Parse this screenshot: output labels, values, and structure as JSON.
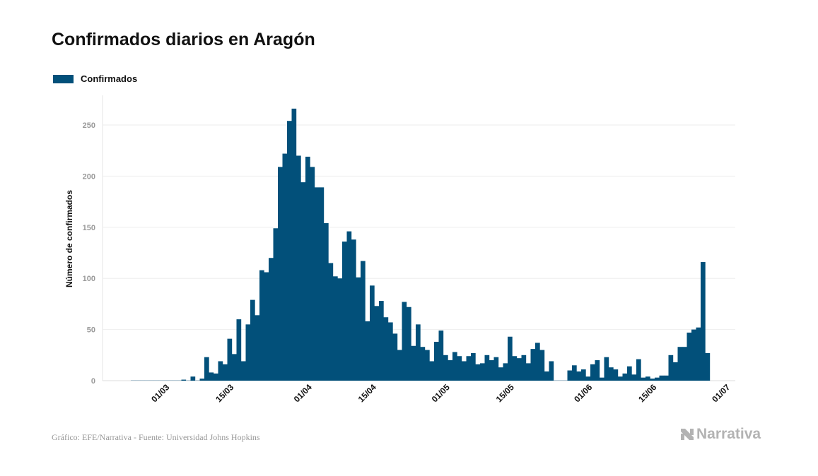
{
  "chart_data": {
    "type": "bar",
    "title": "Confirmados diarios en Aragón",
    "ylabel": "Número de confirmados",
    "xlabel": "",
    "ylim": [
      0,
      280
    ],
    "yticks": [
      0,
      50,
      100,
      150,
      200,
      250
    ],
    "grid": true,
    "legend_placement": "top-left",
    "xtick_labels": [
      "01/03",
      "15/03",
      "01/04",
      "15/04",
      "01/05",
      "15/05",
      "01/06",
      "15/06",
      "01/07"
    ],
    "series": [
      {
        "name": "Confirmados",
        "color": "#02507a",
        "values": [
          0,
          0,
          0,
          0,
          0,
          0,
          0,
          0,
          0,
          0,
          0,
          1,
          0,
          4,
          0,
          2,
          23,
          8,
          7,
          19,
          16,
          41,
          26,
          60,
          19,
          55,
          79,
          64,
          108,
          106,
          120,
          149,
          209,
          222,
          254,
          266,
          220,
          194,
          219,
          209,
          189,
          189,
          154,
          115,
          102,
          100,
          136,
          146,
          138,
          101,
          117,
          58,
          93,
          73,
          78,
          62,
          57,
          46,
          30,
          77,
          72,
          34,
          55,
          33,
          30,
          19,
          38,
          49,
          25,
          20,
          28,
          24,
          19,
          24,
          27,
          16,
          17,
          25,
          20,
          23,
          13,
          17,
          43,
          24,
          22,
          25,
          17,
          31,
          37,
          30,
          9,
          19,
          0,
          0,
          0,
          10,
          15,
          9,
          11,
          4,
          16,
          20,
          3,
          23,
          13,
          11,
          4,
          7,
          14,
          6,
          21,
          3,
          4,
          2,
          3,
          5,
          5,
          25,
          18,
          33,
          33,
          47,
          50,
          52,
          116,
          27
        ]
      }
    ],
    "x": [
      "22/02",
      "23/02",
      "24/02",
      "25/02",
      "26/02",
      "27/02",
      "28/02",
      "29/02",
      "01/03",
      "02/03",
      "03/03",
      "04/03",
      "05/03",
      "06/03",
      "07/03",
      "08/03",
      "09/03",
      "10/03",
      "11/03",
      "12/03",
      "13/03",
      "14/03",
      "15/03",
      "16/03",
      "17/03",
      "18/03",
      "19/03",
      "20/03",
      "21/03",
      "22/03",
      "23/03",
      "24/03",
      "25/03",
      "26/03",
      "27/03",
      "28/03",
      "29/03",
      "30/03",
      "31/03",
      "01/04",
      "02/04",
      "03/04",
      "04/04",
      "05/04",
      "06/04",
      "07/04",
      "08/04",
      "09/04",
      "10/04",
      "11/04",
      "12/04",
      "13/04",
      "14/04",
      "15/04",
      "16/04",
      "17/04",
      "18/04",
      "19/04",
      "20/04",
      "21/04",
      "22/04",
      "23/04",
      "24/04",
      "25/04",
      "26/04",
      "27/04",
      "28/04",
      "29/04",
      "30/04",
      "01/05",
      "02/05",
      "03/05",
      "04/05",
      "05/05",
      "06/05",
      "07/05",
      "08/05",
      "09/05",
      "10/05",
      "11/05",
      "12/05",
      "13/05",
      "14/05",
      "15/05",
      "16/05",
      "17/05",
      "18/05",
      "19/05",
      "20/05",
      "21/05",
      "22/05",
      "23/05",
      "24/05",
      "25/05",
      "26/05",
      "27/05",
      "28/05",
      "29/05",
      "30/05",
      "31/05",
      "01/06",
      "02/06",
      "03/06",
      "04/06",
      "05/06",
      "06/06",
      "07/06",
      "08/06",
      "09/06",
      "10/06",
      "11/06",
      "12/06",
      "13/06",
      "14/06",
      "15/06",
      "16/06",
      "17/06",
      "18/06",
      "19/06",
      "20/06",
      "21/06",
      "22/06",
      "23/06",
      "24/06",
      "25/06",
      "26/06"
    ]
  },
  "legend": {
    "label": "Confirmados"
  },
  "footer": {
    "source": "Gráfico: EFE/Narrativa - Fuente: Universidad Johns Hopkins"
  },
  "logo": {
    "text": "Narrativa",
    "icon": "narrativa-n-icon"
  }
}
